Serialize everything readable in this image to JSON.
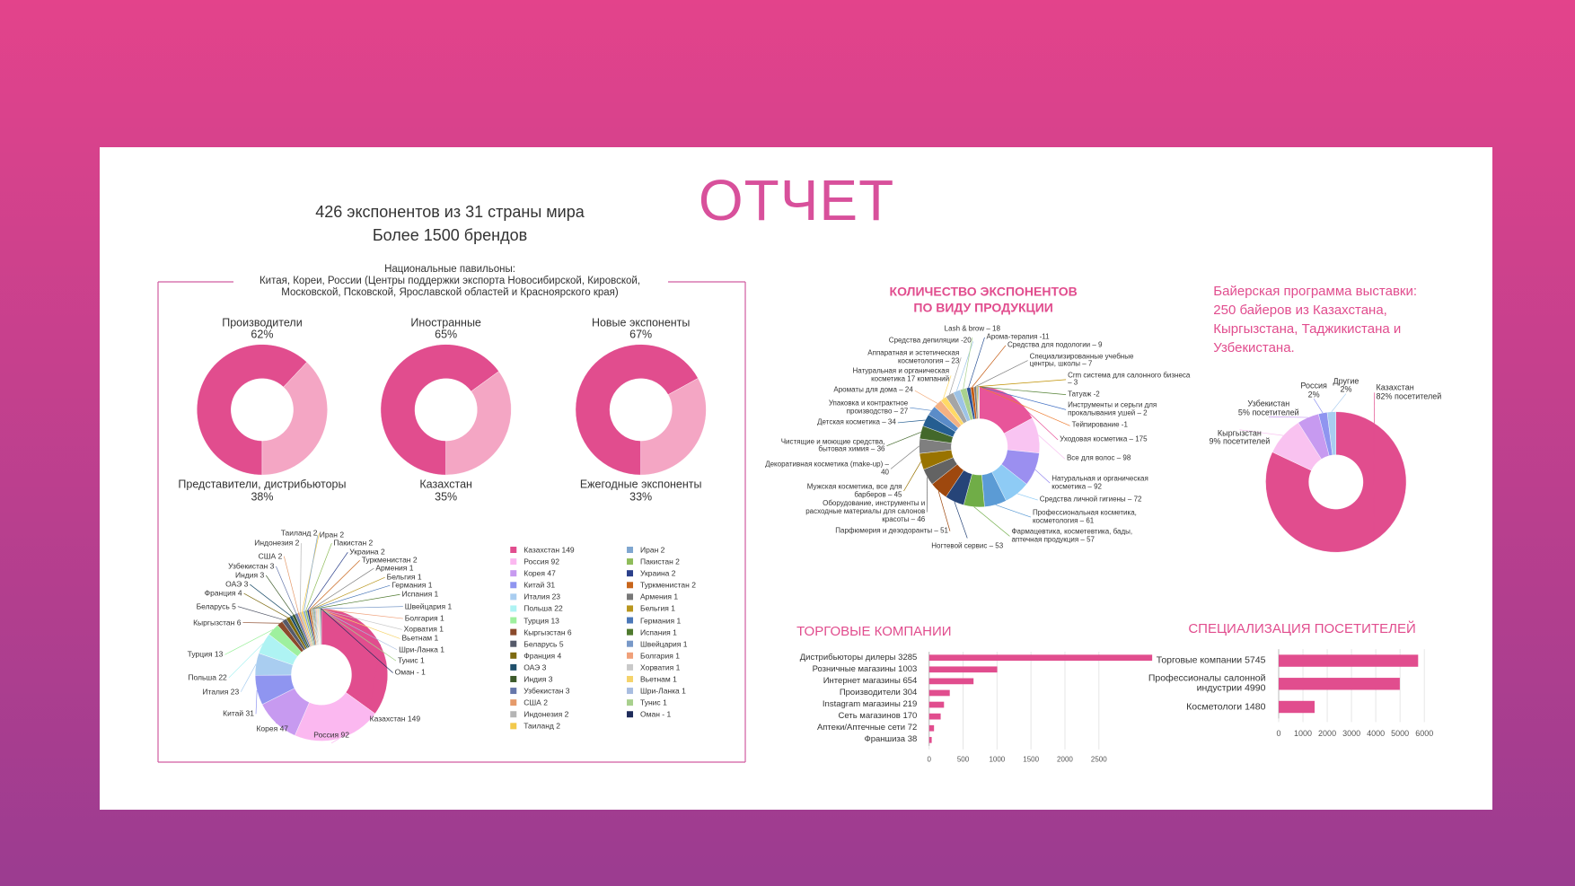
{
  "title": "ОТЧЕТ",
  "summary": [
    "426 экспонентов из 31 страны мира",
    "Более 1500 брендов"
  ],
  "pavilions": {
    "heading": "Национальные павильоны:",
    "text": "Китая, Кореи, России (Центры поддержки экспорта Новосибирской, Кировской, Московской, Псковской, Ярославской областей и Красноярского края)"
  },
  "chart_data": [
    {
      "type": "donut",
      "categories": [
        "Производители",
        "Представители, дистрибьюторы"
      ],
      "values": [
        62,
        38
      ],
      "value_labels": [
        "62%",
        "38%"
      ],
      "colors": [
        "#e14d8e",
        "#f4a6c4"
      ]
    },
    {
      "type": "donut",
      "categories": [
        "Иностранные",
        "Казахстан"
      ],
      "values": [
        65,
        35
      ],
      "value_labels": [
        "65%",
        "35%"
      ],
      "colors": [
        "#e14d8e",
        "#f4a6c4"
      ]
    },
    {
      "type": "donut",
      "categories": [
        "Новые экспоненты",
        "Ежегодные экспоненты"
      ],
      "values": [
        67,
        33
      ],
      "value_labels": [
        "67%",
        "33%"
      ],
      "colors": [
        "#e14d8e",
        "#f4a6c4"
      ]
    },
    {
      "type": "donut",
      "legend": "right",
      "categories": [
        "Казахстан",
        "Россия",
        "Корея",
        "Китай",
        "Италия",
        "Польша",
        "Турция",
        "Кыргызстан",
        "Беларусь",
        "Франция",
        "ОАЭ",
        "Индия",
        "Узбекистан",
        "США",
        "Индонезия",
        "Таиланд",
        "Иран",
        "Пакистан",
        "Украина",
        "Туркменистан",
        "Армения",
        "Бельгия",
        "Германия",
        "Испания",
        "Швейцария",
        "Болгария",
        "Хорватия",
        "Вьетнам",
        "Шри-Ланка",
        "Тунис",
        "Оман"
      ],
      "values": [
        149,
        92,
        47,
        31,
        23,
        22,
        13,
        6,
        5,
        4,
        3,
        3,
        3,
        2,
        2,
        2,
        2,
        2,
        2,
        2,
        1,
        1,
        1,
        1,
        1,
        1,
        1,
        1,
        1,
        1,
        1
      ],
      "value_labels": [
        "149",
        "92",
        "47",
        "31",
        "23",
        "22",
        "13",
        "6",
        "5",
        "4",
        "3",
        "3",
        "3",
        "2",
        "2",
        "2",
        "2",
        "2",
        "2",
        "2",
        "1",
        "1",
        "1",
        "1",
        "1",
        "1",
        "1",
        "1",
        "1",
        "1",
        "- 1"
      ],
      "colors": [
        "#e14d8e",
        "#fbb8f0",
        "#c79af0",
        "#8f95f0",
        "#a9cdf0",
        "#aef3f3",
        "#9ef09e",
        "#8b4a2b",
        "#555a6a",
        "#7d6a10",
        "#1f4f6b",
        "#3d5a2a",
        "#6677aa",
        "#e59a6a",
        "#b5b5b5",
        "#f2c94c",
        "#7fa6d0",
        "#8fbc5a",
        "#2a3f8a",
        "#c8651b",
        "#777777",
        "#b8961e",
        "#4b78b8",
        "#4f7a2e",
        "#7899c8",
        "#f0a07a",
        "#c9c9c9",
        "#f5d36b",
        "#a8bde0",
        "#a8d08d",
        "#1e2b5a"
      ]
    },
    {
      "type": "donut",
      "title": "КОЛИЧЕСТВО ЭКСПОНЕНТОВ ПО ВИДУ ПРОДУКЦИИ",
      "categories": [
        "Уходовая косметика",
        "Все для волос",
        "Натуральная и органическая косметика",
        "Средства личной гигиены",
        "Профессиональная косметика, косметология",
        "Фармацевтика, косметевтика, бады, аптечная продукция",
        "Ногтевой сервис",
        "Парфюмерия и дезодоранты",
        "Оборудование, инструменты и расходные материалы для салонов красоты",
        "Мужская косметика, все для барберов",
        "Декоративная косметика (make-up)",
        "Чистящие и моющие средства, бытовая химия",
        "Детская косметика",
        "Упаковка и контрактное производство",
        "Ароматы для дома",
        "Натуральная и органическая косметика",
        "Аппаратная и эстетическая косметология",
        "Средства депиляции",
        "Lash & brow",
        "Арома-терапия",
        "Средства для подологии",
        "Специализированные учебные центры, школы",
        "Crm система для салонного бизнеса",
        "Татуаж",
        "Инструменты и серьги для прокалывания ушей",
        "Тейпирование"
      ],
      "values": [
        175,
        98,
        92,
        72,
        61,
        57,
        53,
        51,
        46,
        45,
        40,
        36,
        34,
        27,
        24,
        17,
        23,
        20,
        18,
        11,
        9,
        7,
        3,
        2,
        2,
        1
      ],
      "value_labels": [
        "– 175",
        "– 98",
        "– 92",
        "– 72",
        "– 61",
        "– 57",
        "– 53",
        "– 51",
        "– 46",
        "– 45",
        "– 40",
        "– 36",
        "– 34",
        "– 27",
        "– 24",
        "17 компаний",
        "– 23",
        "-20",
        "– 18",
        "-11",
        "– 9",
        "– 7",
        "– 3",
        "-2",
        "– 2",
        "-1"
      ],
      "colors": [
        "#e8559a",
        "#f9c4f2",
        "#9b8ff0",
        "#8ecbf5",
        "#5b9bd5",
        "#70ad47",
        "#264478",
        "#9e480e",
        "#636363",
        "#997300",
        "#7f7f7f",
        "#43682b",
        "#255e91",
        "#5b8cc8",
        "#f4b183",
        "#ffd966",
        "#a5a5a5",
        "#9dc3e6",
        "#a9d18e",
        "#2f5597",
        "#c55a11",
        "#7b7b7b",
        "#bf9000",
        "#548235",
        "#4472c4",
        "#ed7d31"
      ]
    },
    {
      "type": "donut",
      "title": "Байерская программа выставки: 250 байеров из Казахстана, Кыргызстана, Таджикистана и Узбекистана.",
      "categories": [
        "Казахстан",
        "Кыргызстан",
        "Узбекистан",
        "Россия",
        "Другие"
      ],
      "values": [
        82,
        9,
        5,
        2,
        2
      ],
      "value_labels": [
        "82% посетителей",
        "9% посетителей",
        "5% посетителей",
        "2%",
        "2%"
      ],
      "colors": [
        "#e14d8e",
        "#f9c2f0",
        "#c79af0",
        "#8f95f0",
        "#a9cdf0"
      ]
    },
    {
      "type": "bar",
      "orientation": "horizontal",
      "title": "ТОРГОВЫЕ КОМПАНИИ",
      "categories": [
        "Дистрибьюторы дилеры",
        "Розничные магазины",
        "Интернет магазины",
        "Производители",
        "Instagram магазины",
        "Сеть магазинов",
        "Аптеки/Аптечные сети",
        "Франшиза"
      ],
      "values": [
        3285,
        1003,
        654,
        304,
        219,
        170,
        72,
        38
      ],
      "color": "#e14d8e",
      "xlim": [
        0,
        3500
      ],
      "xticks": [
        0,
        500,
        1000,
        1500,
        2000,
        2500
      ]
    },
    {
      "type": "bar",
      "orientation": "horizontal",
      "title": "СПЕЦИАЛИЗАЦИЯ ПОСЕТИТЕЛЕЙ",
      "categories": [
        "Торговые компании",
        "Профессионалы салонной индустрии",
        "Косметологи"
      ],
      "values": [
        5745,
        4990,
        1480
      ],
      "color": "#e14d8e",
      "xlim": [
        0,
        6000
      ],
      "xticks": [
        0,
        1000,
        2000,
        3000,
        4000,
        5000,
        6000
      ]
    }
  ]
}
